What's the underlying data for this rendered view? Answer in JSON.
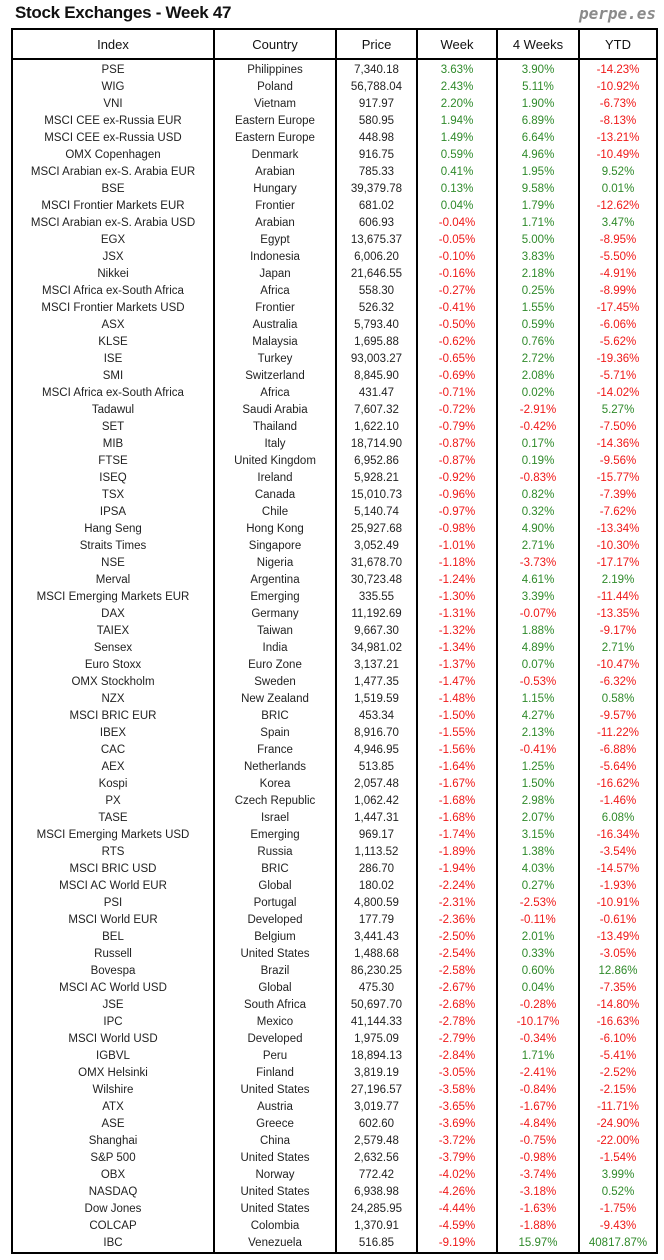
{
  "title": "Stock Exchanges - Week 47",
  "brand": "perpe.es",
  "colors": {
    "positive": "#2f8a2a",
    "negative": "#f01818"
  },
  "columns": [
    "Index",
    "Country",
    "Price",
    "Week",
    "4 Weeks",
    "YTD"
  ],
  "rows": [
    [
      "PSE",
      "Philippines",
      "7,340.18",
      "3.63%",
      "3.90%",
      "-14.23%"
    ],
    [
      "WIG",
      "Poland",
      "56,788.04",
      "2.43%",
      "5.11%",
      "-10.92%"
    ],
    [
      "VNI",
      "Vietnam",
      "917.97",
      "2.20%",
      "1.90%",
      "-6.73%"
    ],
    [
      "MSCI CEE ex-Russia EUR",
      "Eastern Europe",
      "580.95",
      "1.94%",
      "6.89%",
      "-8.13%"
    ],
    [
      "MSCI CEE ex-Russia USD",
      "Eastern Europe",
      "448.98",
      "1.49%",
      "6.64%",
      "-13.21%"
    ],
    [
      "OMX Copenhagen",
      "Denmark",
      "916.75",
      "0.59%",
      "4.96%",
      "-10.49%"
    ],
    [
      "MSCI Arabian ex-S. Arabia EUR",
      "Arabian",
      "785.33",
      "0.41%",
      "1.95%",
      "9.52%"
    ],
    [
      "BSE",
      "Hungary",
      "39,379.78",
      "0.13%",
      "9.58%",
      "0.01%"
    ],
    [
      "MSCI Frontier Markets EUR",
      "Frontier",
      "681.02",
      "0.04%",
      "1.79%",
      "-12.62%"
    ],
    [
      "MSCI Arabian ex-S. Arabia USD",
      "Arabian",
      "606.93",
      "-0.04%",
      "1.71%",
      "3.47%"
    ],
    [
      "EGX",
      "Egypt",
      "13,675.37",
      "-0.05%",
      "5.00%",
      "-8.95%"
    ],
    [
      "JSX",
      "Indonesia",
      "6,006.20",
      "-0.10%",
      "3.83%",
      "-5.50%"
    ],
    [
      "Nikkei",
      "Japan",
      "21,646.55",
      "-0.16%",
      "2.18%",
      "-4.91%"
    ],
    [
      "MSCI Africa ex-South Africa",
      "Africa",
      "558.30",
      "-0.27%",
      "0.25%",
      "-8.99%"
    ],
    [
      "MSCI Frontier Markets USD",
      "Frontier",
      "526.32",
      "-0.41%",
      "1.55%",
      "-17.45%"
    ],
    [
      "ASX",
      "Australia",
      "5,793.40",
      "-0.50%",
      "0.59%",
      "-6.06%"
    ],
    [
      "KLSE",
      "Malaysia",
      "1,695.88",
      "-0.62%",
      "0.76%",
      "-5.62%"
    ],
    [
      "ISE",
      "Turkey",
      "93,003.27",
      "-0.65%",
      "2.72%",
      "-19.36%"
    ],
    [
      "SMI",
      "Switzerland",
      "8,845.90",
      "-0.69%",
      "2.08%",
      "-5.71%"
    ],
    [
      "MSCI Africa ex-South Africa",
      "Africa",
      "431.47",
      "-0.71%",
      "0.02%",
      "-14.02%"
    ],
    [
      "Tadawul",
      "Saudi Arabia",
      "7,607.32",
      "-0.72%",
      "-2.91%",
      "5.27%"
    ],
    [
      "SET",
      "Thailand",
      "1,622.10",
      "-0.79%",
      "-0.42%",
      "-7.50%"
    ],
    [
      "MIB",
      "Italy",
      "18,714.90",
      "-0.87%",
      "0.17%",
      "-14.36%"
    ],
    [
      "FTSE",
      "United Kingdom",
      "6,952.86",
      "-0.87%",
      "0.19%",
      "-9.56%"
    ],
    [
      "ISEQ",
      "Ireland",
      "5,928.21",
      "-0.92%",
      "-0.83%",
      "-15.77%"
    ],
    [
      "TSX",
      "Canada",
      "15,010.73",
      "-0.96%",
      "0.82%",
      "-7.39%"
    ],
    [
      "IPSA",
      "Chile",
      "5,140.74",
      "-0.97%",
      "0.32%",
      "-7.62%"
    ],
    [
      "Hang Seng",
      "Hong Kong",
      "25,927.68",
      "-0.98%",
      "4.90%",
      "-13.34%"
    ],
    [
      "Straits Times",
      "Singapore",
      "3,052.49",
      "-1.01%",
      "2.71%",
      "-10.30%"
    ],
    [
      "NSE",
      "Nigeria",
      "31,678.70",
      "-1.18%",
      "-3.73%",
      "-17.17%"
    ],
    [
      "Merval",
      "Argentina",
      "30,723.48",
      "-1.24%",
      "4.61%",
      "2.19%"
    ],
    [
      "MSCI Emerging Markets EUR",
      "Emerging",
      "335.55",
      "-1.30%",
      "3.39%",
      "-11.44%"
    ],
    [
      "DAX",
      "Germany",
      "11,192.69",
      "-1.31%",
      "-0.07%",
      "-13.35%"
    ],
    [
      "TAIEX",
      "Taiwan",
      "9,667.30",
      "-1.32%",
      "1.88%",
      "-9.17%"
    ],
    [
      "Sensex",
      "India",
      "34,981.02",
      "-1.34%",
      "4.89%",
      "2.71%"
    ],
    [
      "Euro Stoxx",
      "Euro Zone",
      "3,137.21",
      "-1.37%",
      "0.07%",
      "-10.47%"
    ],
    [
      "OMX Stockholm",
      "Sweden",
      "1,477.35",
      "-1.47%",
      "-0.53%",
      "-6.32%"
    ],
    [
      "NZX",
      "New Zealand",
      "1,519.59",
      "-1.48%",
      "1.15%",
      "0.58%"
    ],
    [
      "MSCI BRIC EUR",
      "BRIC",
      "453.34",
      "-1.50%",
      "4.27%",
      "-9.57%"
    ],
    [
      "IBEX",
      "Spain",
      "8,916.70",
      "-1.55%",
      "2.13%",
      "-11.22%"
    ],
    [
      "CAC",
      "France",
      "4,946.95",
      "-1.56%",
      "-0.41%",
      "-6.88%"
    ],
    [
      "AEX",
      "Netherlands",
      "513.85",
      "-1.64%",
      "1.25%",
      "-5.64%"
    ],
    [
      "Kospi",
      "Korea",
      "2,057.48",
      "-1.67%",
      "1.50%",
      "-16.62%"
    ],
    [
      "PX",
      "Czech Republic",
      "1,062.42",
      "-1.68%",
      "2.98%",
      "-1.46%"
    ],
    [
      "TASE",
      "Israel",
      "1,447.31",
      "-1.68%",
      "2.07%",
      "6.08%"
    ],
    [
      "MSCI Emerging Markets USD",
      "Emerging",
      "969.17",
      "-1.74%",
      "3.15%",
      "-16.34%"
    ],
    [
      "RTS",
      "Russia",
      "1,113.52",
      "-1.89%",
      "1.38%",
      "-3.54%"
    ],
    [
      "MSCI BRIC USD",
      "BRIC",
      "286.70",
      "-1.94%",
      "4.03%",
      "-14.57%"
    ],
    [
      "MSCI AC World EUR",
      "Global",
      "180.02",
      "-2.24%",
      "0.27%",
      "-1.93%"
    ],
    [
      "PSI",
      "Portugal",
      "4,800.59",
      "-2.31%",
      "-2.53%",
      "-10.91%"
    ],
    [
      "MSCI World EUR",
      "Developed",
      "177.79",
      "-2.36%",
      "-0.11%",
      "-0.61%"
    ],
    [
      "BEL",
      "Belgium",
      "3,441.43",
      "-2.50%",
      "2.01%",
      "-13.49%"
    ],
    [
      "Russell",
      "United States",
      "1,488.68",
      "-2.54%",
      "0.33%",
      "-3.05%"
    ],
    [
      "Bovespa",
      "Brazil",
      "86,230.25",
      "-2.58%",
      "0.60%",
      "12.86%"
    ],
    [
      "MSCI AC World USD",
      "Global",
      "475.30",
      "-2.67%",
      "0.04%",
      "-7.35%"
    ],
    [
      "JSE",
      "South Africa",
      "50,697.70",
      "-2.68%",
      "-0.28%",
      "-14.80%"
    ],
    [
      "IPC",
      "Mexico",
      "41,144.33",
      "-2.78%",
      "-10.17%",
      "-16.63%"
    ],
    [
      "MSCI World USD",
      "Developed",
      "1,975.09",
      "-2.79%",
      "-0.34%",
      "-6.10%"
    ],
    [
      "IGBVL",
      "Peru",
      "18,894.13",
      "-2.84%",
      "1.71%",
      "-5.41%"
    ],
    [
      "OMX Helsinki",
      "Finland",
      "3,819.19",
      "-3.05%",
      "-2.41%",
      "-2.52%"
    ],
    [
      "Wilshire",
      "United States",
      "27,196.57",
      "-3.58%",
      "-0.84%",
      "-2.15%"
    ],
    [
      "ATX",
      "Austria",
      "3,019.77",
      "-3.65%",
      "-1.67%",
      "-11.71%"
    ],
    [
      "ASE",
      "Greece",
      "602.60",
      "-3.69%",
      "-4.84%",
      "-24.90%"
    ],
    [
      "Shanghai",
      "China",
      "2,579.48",
      "-3.72%",
      "-0.75%",
      "-22.00%"
    ],
    [
      "S&P 500",
      "United States",
      "2,632.56",
      "-3.79%",
      "-0.98%",
      "-1.54%"
    ],
    [
      "OBX",
      "Norway",
      "772.42",
      "-4.02%",
      "-3.74%",
      "3.99%"
    ],
    [
      "NASDAQ",
      "United States",
      "6,938.98",
      "-4.26%",
      "-3.18%",
      "0.52%"
    ],
    [
      "Dow Jones",
      "United States",
      "24,285.95",
      "-4.44%",
      "-1.63%",
      "-1.75%"
    ],
    [
      "COLCAP",
      "Colombia",
      "1,370.91",
      "-4.59%",
      "-1.88%",
      "-9.43%"
    ],
    [
      "IBC",
      "Venezuela",
      "516.85",
      "-9.19%",
      "15.97%",
      "40817.87%"
    ]
  ]
}
